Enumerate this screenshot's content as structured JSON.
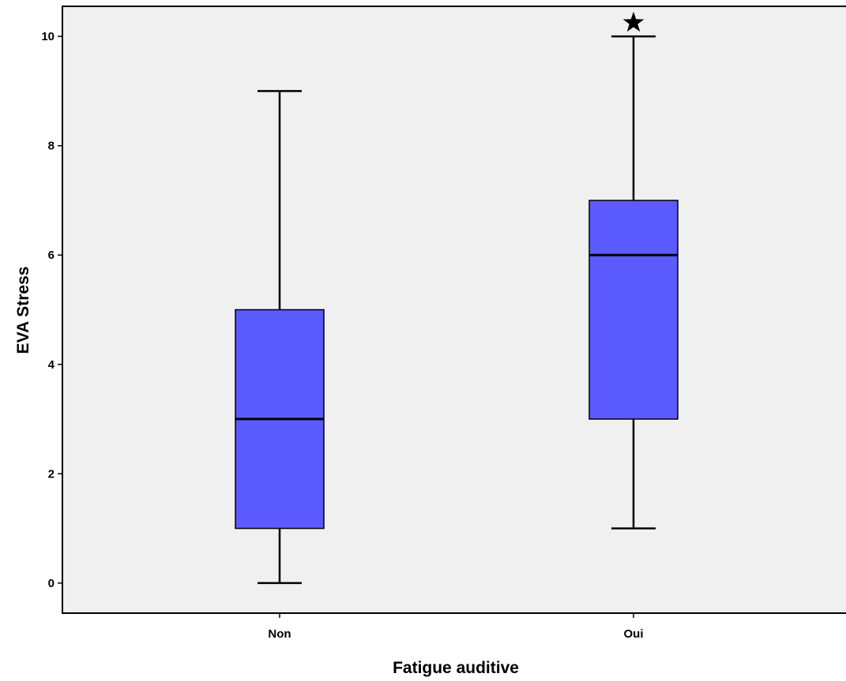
{
  "chart_data": {
    "type": "boxplot",
    "title": "",
    "xlabel": "Fatigue auditive",
    "ylabel": "EVA Stress",
    "ylim": [
      -0.55,
      10.55
    ],
    "yticks": [
      0,
      2,
      4,
      6,
      8,
      10
    ],
    "ytick_labels": [
      "0",
      "2",
      "4",
      "6",
      "8",
      "10"
    ],
    "grid": false,
    "colors": {
      "box": "#5b5bff",
      "plot_bg": "#f0f0f0",
      "line": "#000000"
    },
    "categories": [
      "Non",
      "Oui"
    ],
    "boxes": [
      {
        "category": "Non",
        "whisker_low": 0,
        "q1": 1,
        "median": 3,
        "q3": 5,
        "whisker_high": 9,
        "outliers": [],
        "extremes": []
      },
      {
        "category": "Oui",
        "whisker_low": 1,
        "q1": 3,
        "median": 6,
        "q3": 7,
        "whisker_high": 10,
        "outliers": [],
        "extremes": [
          10.25
        ]
      }
    ]
  }
}
